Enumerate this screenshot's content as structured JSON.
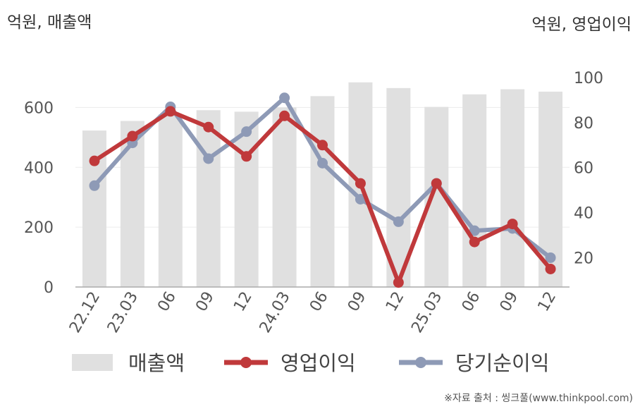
{
  "chart_data": {
    "type": "bar+line",
    "left_axis_title": "억원, 매출액",
    "right_axis_title": "억원, 영업이익",
    "categories": [
      "22.12",
      "23.03",
      "06",
      "09",
      "12",
      "24.03",
      "06",
      "09",
      "12",
      "25.03",
      "06",
      "09",
      "12"
    ],
    "left_ylim": [
      0,
      700
    ],
    "left_ticks": [
      0,
      200,
      400,
      600
    ],
    "right_ylim": [
      7,
      100
    ],
    "right_ticks": [
      20,
      40,
      60,
      80,
      100
    ],
    "grid": true,
    "series": [
      {
        "name": "매출액",
        "type": "bar",
        "axis": "left",
        "color": "#e0e0e0",
        "values": [
          523,
          555,
          577,
          591,
          586,
          600,
          638,
          684,
          665,
          602,
          644,
          661,
          653
        ]
      },
      {
        "name": "영업이익",
        "type": "line",
        "axis": "right",
        "color": "#c0393b",
        "values": [
          63,
          74,
          85,
          78,
          65,
          83,
          70,
          53,
          9,
          53,
          27,
          35,
          15
        ]
      },
      {
        "name": "당기순이익",
        "type": "line",
        "axis": "right",
        "color": "#8e9ab6",
        "values": [
          52,
          71,
          87,
          64,
          76,
          91,
          62,
          46,
          36,
          53,
          32,
          33,
          20
        ]
      }
    ],
    "legend_position": "bottom"
  },
  "source_note": "※자료 출처 : 씽크풀(www.thinkpool.com)"
}
